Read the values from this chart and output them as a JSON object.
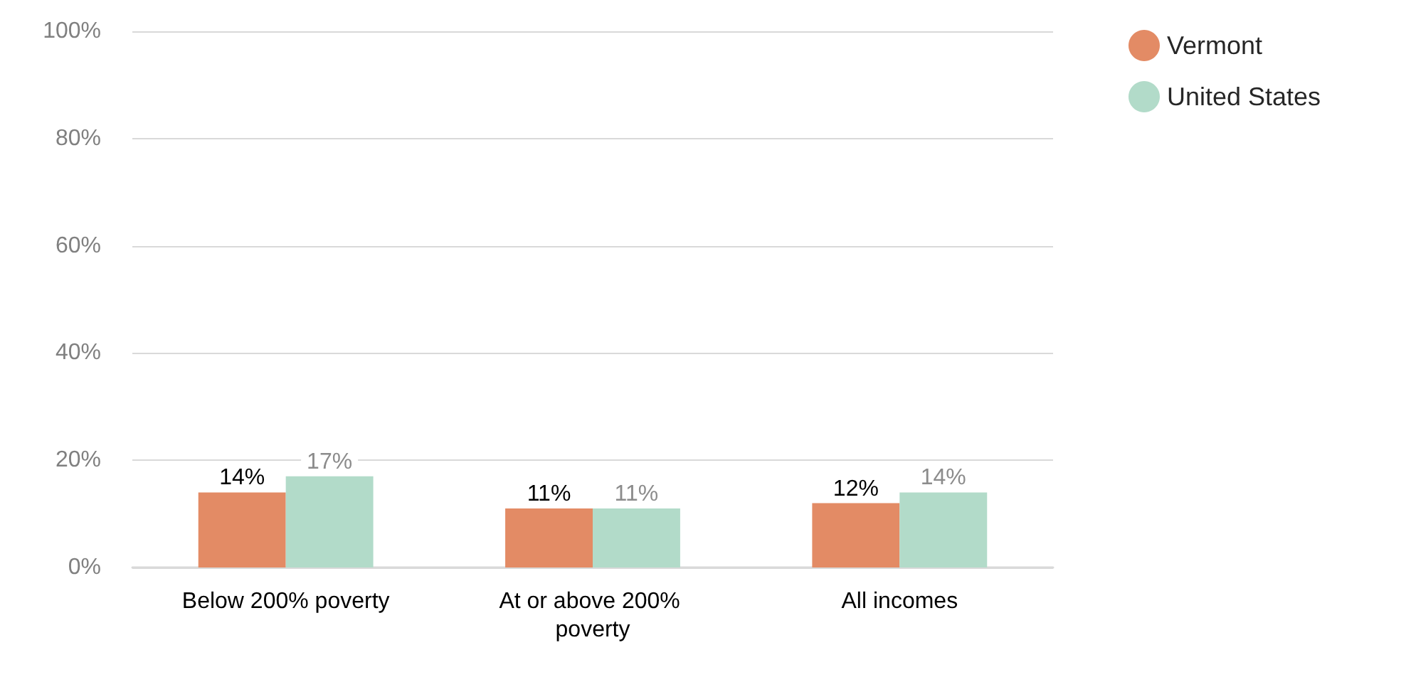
{
  "chart_data": {
    "type": "bar",
    "categories": [
      "Below 200% poverty",
      "At or above 200% poverty",
      "All incomes"
    ],
    "series": [
      {
        "name": "Vermont",
        "color": "#e38b65",
        "values": [
          14,
          11,
          12
        ],
        "value_labels": [
          "14%",
          "11%",
          "12%"
        ]
      },
      {
        "name": "United States",
        "color": "#b2dbc9",
        "values": [
          17,
          11,
          14
        ],
        "value_labels": [
          "17%",
          "11%",
          "14%"
        ]
      }
    ],
    "ylim": [
      0,
      100
    ],
    "yticks": [
      {
        "value": 0,
        "label": "0%"
      },
      {
        "value": 20,
        "label": "20%"
      },
      {
        "value": 40,
        "label": "40%"
      },
      {
        "value": 60,
        "label": "60%"
      },
      {
        "value": 80,
        "label": "80%"
      },
      {
        "value": 100,
        "label": "100%"
      }
    ],
    "grid": "y",
    "legend": "top right"
  }
}
